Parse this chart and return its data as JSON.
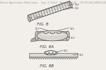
{
  "bg_color": "#f2efea",
  "header_text": "Patent Application Publication    Sep. 2, 2014   Sheet 4 of 14    US 2014/0249556 A1",
  "header_fontsize": 2.5,
  "header_color": "#999999",
  "fig_label_color": "#333333",
  "fig_label_fontsize": 4.0,
  "fig8_label": "FIG. 8",
  "fig8a_label": "FIG. 8A",
  "fig8b_label": "FIG. 8B",
  "line_color": "#4a4a4a",
  "face_light": "#dddad4",
  "face_mid": "#c8c4bc",
  "face_dark": "#b0ada6",
  "face_highlight": "#eeeae4"
}
